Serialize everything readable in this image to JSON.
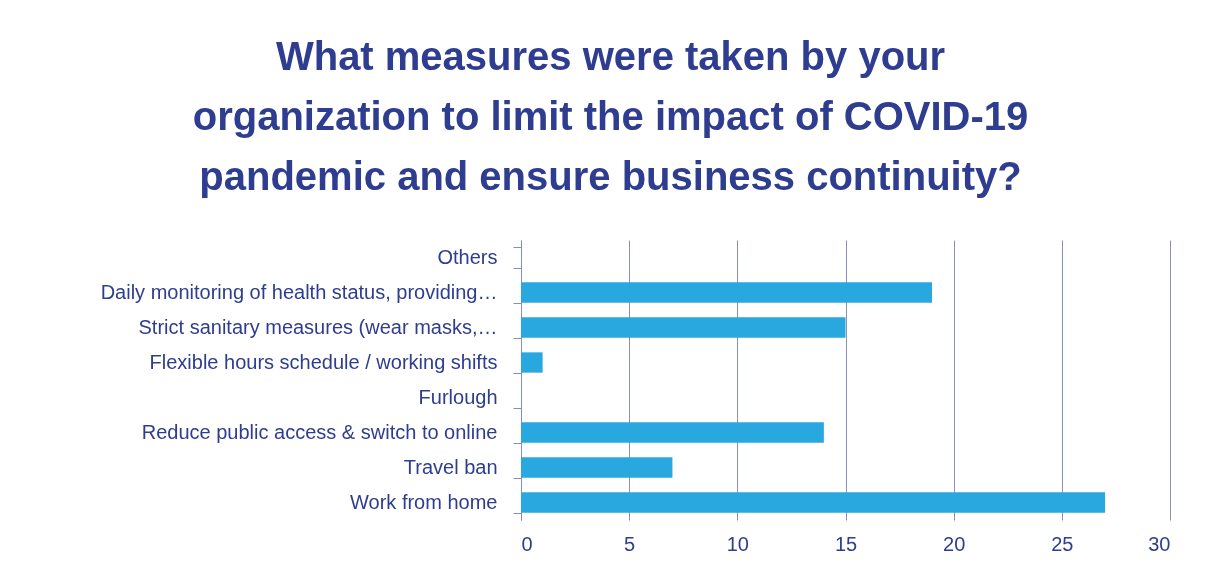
{
  "chart_data": {
    "type": "bar",
    "orientation": "horizontal",
    "title": "What measures were taken by your\norganization to limit the impact of COVID-19\npandemic and ensure business continuity?",
    "categories": [
      "Others",
      "Daily monitoring of health status, providing…",
      "Strict sanitary measures (wear masks,…",
      "Flexible hours schedule / working shifts",
      "Furlough",
      "Reduce public access & switch to online",
      "Travel ban",
      "Work from home"
    ],
    "values": [
      0,
      19,
      15,
      1,
      0,
      14,
      7,
      27
    ],
    "color": "#29a8e0",
    "xlim": [
      0,
      30
    ],
    "xticks": [
      0,
      5,
      10,
      15,
      20,
      25,
      30
    ],
    "grid": "x"
  }
}
